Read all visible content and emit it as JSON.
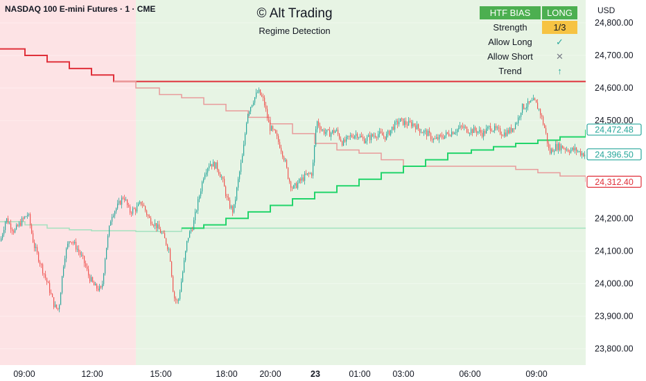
{
  "header": {
    "symbol": "NASDAQ 100 E-mini Futures · 1 · CME",
    "brand": "© Alt Trading",
    "subtitle": "Regime Detection",
    "currency": "USD"
  },
  "bias_table": {
    "title": "HTF BIAS",
    "value": "LONG",
    "rows": [
      {
        "label": "Strength",
        "value": "1/3"
      },
      {
        "label": "Allow Long",
        "value": "✓"
      },
      {
        "label": "Allow Short",
        "value": "✕"
      },
      {
        "label": "Trend",
        "value": "↑"
      }
    ]
  },
  "colors": {
    "bear_zone": "#fde3e5",
    "bull_zone": "#e7f4e4",
    "upper_band_strong": "#e0303a",
    "upper_band_faded": "#e89a9a",
    "mid_band": "#21d46a",
    "mid_band_faded": "#a3e2bf",
    "candle_up": "#26a69a",
    "candle_down": "#ef5350",
    "label_teal": "#26a69a",
    "label_red": "#e0303a"
  },
  "chart_data": {
    "type": "candlestick",
    "y_axis_ticks": [
      "24,800.00",
      "24,700.00",
      "24,600.00",
      "24,500.00",
      "24,200.00",
      "24,100.00",
      "24,000.00",
      "23,900.00",
      "23,800.00"
    ],
    "x_axis_ticks": [
      "09:00",
      "12:00",
      "15:00",
      "18:00",
      "20:00",
      "23",
      "01:00",
      "03:00",
      "06:00",
      "09:00"
    ],
    "ylim": [
      23750,
      24870
    ],
    "price_labels": [
      {
        "value": "24,472.48",
        "series": "mid_band"
      },
      {
        "value": "24,396.50",
        "series": "last_price"
      },
      {
        "value": "24,312.40",
        "series": "upper_band"
      }
    ],
    "regime_zones": [
      {
        "regime": "bearish",
        "from": "07:00",
        "to": "14:00"
      },
      {
        "regime": "bullish",
        "from": "14:00",
        "to": "10:45"
      }
    ],
    "price_path": [
      [
        0,
        24130
      ],
      [
        8,
        24200
      ],
      [
        20,
        24160
      ],
      [
        30,
        24190
      ],
      [
        40,
        24215
      ],
      [
        48,
        24120
      ],
      [
        58,
        24060
      ],
      [
        68,
        24000
      ],
      [
        78,
        23930
      ],
      [
        84,
        23920
      ],
      [
        92,
        24080
      ],
      [
        100,
        24140
      ],
      [
        110,
        24110
      ],
      [
        120,
        24070
      ],
      [
        128,
        24020
      ],
      [
        136,
        23990
      ],
      [
        146,
        23980
      ],
      [
        152,
        24100
      ],
      [
        160,
        24210
      ],
      [
        170,
        24240
      ],
      [
        178,
        24270
      ],
      [
        186,
        24220
      ],
      [
        196,
        24230
      ],
      [
        204,
        24250
      ],
      [
        214,
        24200
      ],
      [
        224,
        24180
      ],
      [
        234,
        24150
      ],
      [
        244,
        24100
      ],
      [
        250,
        23960
      ],
      [
        256,
        23940
      ],
      [
        262,
        24020
      ],
      [
        270,
        24140
      ],
      [
        278,
        24180
      ],
      [
        286,
        24260
      ],
      [
        294,
        24340
      ],
      [
        302,
        24370
      ],
      [
        312,
        24360
      ],
      [
        320,
        24320
      ],
      [
        328,
        24250
      ],
      [
        336,
        24220
      ],
      [
        344,
        24330
      ],
      [
        350,
        24400
      ],
      [
        356,
        24520
      ],
      [
        364,
        24560
      ],
      [
        372,
        24590
      ],
      [
        380,
        24560
      ],
      [
        388,
        24480
      ],
      [
        396,
        24460
      ],
      [
        404,
        24420
      ],
      [
        410,
        24380
      ],
      [
        416,
        24320
      ],
      [
        422,
        24290
      ],
      [
        430,
        24310
      ],
      [
        440,
        24330
      ],
      [
        450,
        24340
      ],
      [
        456,
        24500
      ],
      [
        464,
        24470
      ],
      [
        474,
        24460
      ],
      [
        484,
        24470
      ],
      [
        494,
        24430
      ],
      [
        504,
        24450
      ],
      [
        514,
        24460
      ],
      [
        524,
        24440
      ],
      [
        534,
        24450
      ],
      [
        544,
        24460
      ],
      [
        556,
        24450
      ],
      [
        566,
        24480
      ],
      [
        576,
        24500
      ],
      [
        586,
        24490
      ],
      [
        596,
        24490
      ],
      [
        606,
        24470
      ],
      [
        616,
        24460
      ],
      [
        626,
        24440
      ],
      [
        636,
        24450
      ],
      [
        646,
        24460
      ],
      [
        656,
        24470
      ],
      [
        666,
        24480
      ],
      [
        676,
        24470
      ],
      [
        686,
        24470
      ],
      [
        696,
        24460
      ],
      [
        706,
        24480
      ],
      [
        716,
        24470
      ],
      [
        726,
        24460
      ],
      [
        736,
        24470
      ],
      [
        746,
        24500
      ],
      [
        752,
        24540
      ],
      [
        762,
        24550
      ],
      [
        770,
        24560
      ],
      [
        778,
        24530
      ],
      [
        786,
        24470
      ],
      [
        792,
        24400
      ],
      [
        800,
        24420
      ],
      [
        810,
        24420
      ],
      [
        820,
        24410
      ],
      [
        830,
        24410
      ],
      [
        838,
        24400
      ],
      [
        845,
        24396
      ]
    ],
    "upper_band_steps": [
      [
        0,
        24720
      ],
      [
        36,
        24700
      ],
      [
        68,
        24680
      ],
      [
        100,
        24660
      ],
      [
        132,
        24640
      ],
      [
        164,
        24620
      ],
      [
        196,
        24600
      ],
      [
        230,
        24580
      ],
      [
        262,
        24570
      ],
      [
        294,
        24550
      ],
      [
        326,
        24530
      ],
      [
        358,
        24510
      ],
      [
        390,
        24490
      ],
      [
        422,
        24460
      ],
      [
        454,
        24430
      ],
      [
        486,
        24410
      ],
      [
        518,
        24400
      ],
      [
        550,
        24380
      ],
      [
        582,
        24360
      ],
      [
        614,
        24360
      ],
      [
        646,
        24360
      ],
      [
        680,
        24360
      ],
      [
        712,
        24360
      ],
      [
        744,
        24350
      ],
      [
        776,
        24340
      ],
      [
        808,
        24330
      ],
      [
        845,
        24312
      ]
    ],
    "mid_band_steps": [
      [
        0,
        24190
      ],
      [
        36,
        24180
      ],
      [
        68,
        24170
      ],
      [
        100,
        24165
      ],
      [
        132,
        24162
      ],
      [
        164,
        24162
      ],
      [
        196,
        24160
      ],
      [
        230,
        24160
      ],
      [
        262,
        24170
      ],
      [
        294,
        24180
      ],
      [
        326,
        24200
      ],
      [
        358,
        24220
      ],
      [
        390,
        24240
      ],
      [
        422,
        24260
      ],
      [
        454,
        24280
      ],
      [
        486,
        24300
      ],
      [
        518,
        24320
      ],
      [
        550,
        24340
      ],
      [
        582,
        24360
      ],
      [
        614,
        24380
      ],
      [
        646,
        24400
      ],
      [
        680,
        24410
      ],
      [
        712,
        24420
      ],
      [
        744,
        24430
      ],
      [
        776,
        24440
      ],
      [
        808,
        24450
      ],
      [
        845,
        24472
      ]
    ]
  }
}
